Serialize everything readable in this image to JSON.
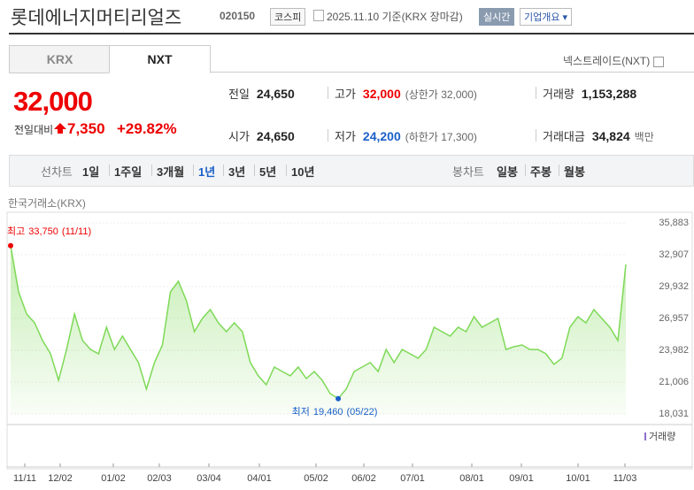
{
  "header": {
    "title": "롯데에너지머티리얼즈",
    "code": "020150",
    "market": "코스피",
    "date_note": "2025.11.10 기준(KRX 장마감)",
    "realtime": "실시간",
    "company_info": "기업개요"
  },
  "tabs": [
    "KRX",
    "NXT"
  ],
  "active_tab": 1,
  "nxt_toggle": "넥스트레이드(NXT)",
  "quote": {
    "price": "32,000",
    "change_label": "전일대비",
    "change": "7,350",
    "change_pct": "+29.82%"
  },
  "stats": [
    {
      "label": "전일",
      "value": "24,650"
    },
    {
      "label": "고가",
      "value": "32,000",
      "note": "(상한가 32,000)"
    },
    {
      "label": "거래량",
      "value": "1,153,288"
    },
    {
      "label": "시가",
      "value": "24,650"
    },
    {
      "label": "저가",
      "value": "24,200",
      "note": "(하한가 17,300)"
    },
    {
      "label": "거래대금",
      "value": "34,824",
      "unit": "백만"
    }
  ],
  "periods": {
    "label": "선차트",
    "items": [
      "1일",
      "1주일",
      "3개월",
      "1년",
      "3년",
      "5년",
      "10년"
    ],
    "selected": 3
  },
  "candles": {
    "label": "봉차트",
    "items": [
      "일봉",
      "주봉",
      "월봉"
    ]
  },
  "chart_data": {
    "type": "line",
    "source": "한국거래소(KRX)",
    "color": "#7ed957",
    "values": [
      33750,
      29440,
      27370,
      26540,
      24890,
      23650,
      21170,
      24060,
      27370,
      24890,
      24060,
      23650,
      26130,
      24060,
      25300,
      24060,
      22830,
      20350,
      22830,
      24480,
      29440,
      30430,
      28610,
      25720,
      26960,
      27780,
      26540,
      25720,
      26540,
      25720,
      22830,
      21590,
      20760,
      22410,
      22000,
      21590,
      22410,
      21340,
      22000,
      21170,
      19930,
      19460,
      20350,
      22000,
      22410,
      22830,
      22000,
      24060,
      22830,
      24060,
      23650,
      23240,
      24060,
      26130,
      25720,
      25300,
      26130,
      25720,
      27120,
      26130,
      26540,
      26960,
      24060,
      24310,
      24480,
      24060,
      24060,
      23650,
      22660,
      23240,
      26130,
      27120,
      26540,
      27780,
      26960,
      26130,
      24890,
      32000
    ],
    "ylim": [
      18031,
      35883
    ],
    "yticks": [
      {
        "value": 18031,
        "label": "18,031"
      },
      {
        "value": 21006,
        "label": "21,006"
      },
      {
        "value": 23982,
        "label": "23,982"
      },
      {
        "value": 26957,
        "label": "26,957"
      },
      {
        "value": 29932,
        "label": "29,932"
      },
      {
        "value": 32907,
        "label": "32,907"
      },
      {
        "value": 35883,
        "label": "35,883"
      }
    ],
    "x_labels": [
      "11/11",
      "12/02",
      "01/02",
      "02/03",
      "03/04",
      "04/01",
      "05/02",
      "06/02",
      "07/01",
      "08/01",
      "09/01",
      "10/01",
      "11/03"
    ],
    "high": {
      "label": "최고",
      "value": 33750,
      "value_label": "33,750",
      "date": "(11/11)"
    },
    "low": {
      "label": "최저",
      "value": 19460,
      "value_label": "19,460",
      "date": "(05/22)"
    },
    "volume_label": "거래량",
    "grid": true
  }
}
